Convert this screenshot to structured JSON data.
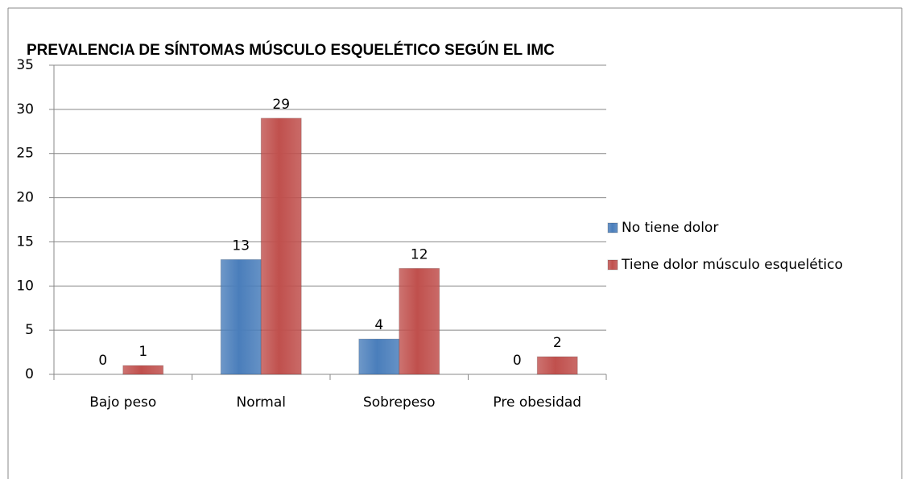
{
  "chart_data": {
    "type": "bar",
    "title": "PREVALENCIA DE SÍNTOMAS MÚSCULO ESQUELÉTICO SEGÚN  EL IMC",
    "categories": [
      "Bajo peso",
      "Normal",
      "Sobrepeso",
      "Pre obesidad"
    ],
    "series": [
      {
        "name": "No tiene dolor",
        "color": "#4a7ebb",
        "values": [
          0,
          13,
          4,
          0
        ]
      },
      {
        "name": "Tiene dolor músculo esquelético",
        "color": "#c0504d",
        "values": [
          1,
          29,
          12,
          2
        ]
      }
    ],
    "ylim": [
      0,
      35
    ],
    "yticks": [
      0,
      5,
      10,
      15,
      20,
      25,
      30,
      35
    ],
    "grid": true,
    "legend": "right"
  }
}
